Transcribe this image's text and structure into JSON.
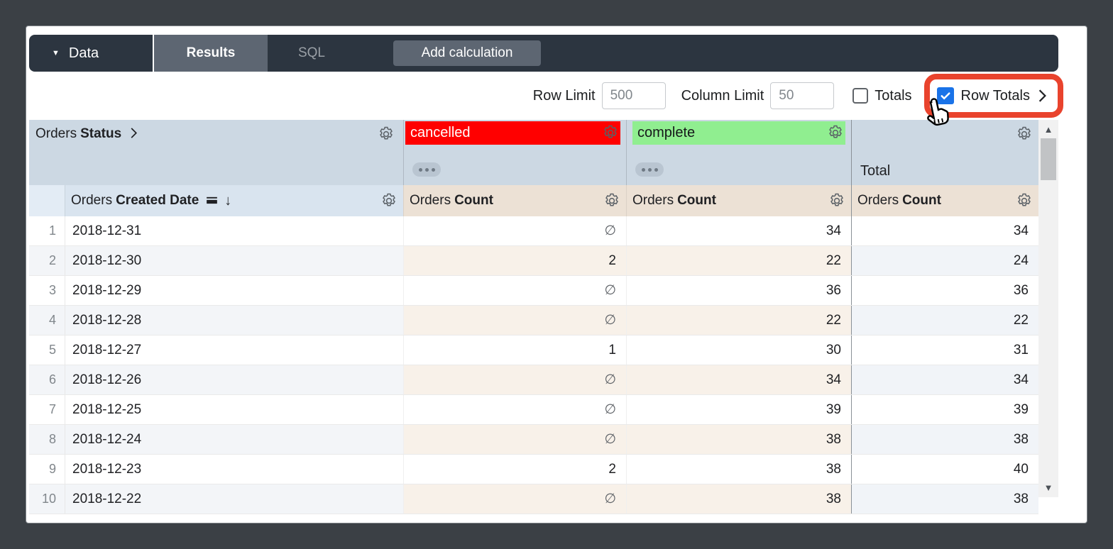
{
  "nav": {
    "data_label": "Data",
    "results_label": "Results",
    "sql_label": "SQL",
    "add_calculation_label": "Add calculation"
  },
  "controls": {
    "row_limit_label": "Row Limit",
    "row_limit_value": "500",
    "column_limit_label": "Column Limit",
    "column_limit_value": "50",
    "totals_label": "Totals",
    "totals_checked": false,
    "row_totals_label": "Row Totals",
    "row_totals_checked": true
  },
  "table": {
    "pivot_field_prefix": "Orders",
    "pivot_field_name": "Status",
    "pivot_values": [
      {
        "label": "cancelled"
      },
      {
        "label": "complete"
      }
    ],
    "total_label": "Total",
    "dimension_prefix": "Orders",
    "dimension_name": "Created Date",
    "measure_prefix": "Orders",
    "measure_name": "Count",
    "null_symbol": "∅",
    "rows": [
      {
        "n": "1",
        "date": "2018-12-31",
        "cancelled": null,
        "complete": 34,
        "total": 34
      },
      {
        "n": "2",
        "date": "2018-12-30",
        "cancelled": 2,
        "complete": 22,
        "total": 24
      },
      {
        "n": "3",
        "date": "2018-12-29",
        "cancelled": null,
        "complete": 36,
        "total": 36
      },
      {
        "n": "4",
        "date": "2018-12-28",
        "cancelled": null,
        "complete": 22,
        "total": 22
      },
      {
        "n": "5",
        "date": "2018-12-27",
        "cancelled": 1,
        "complete": 30,
        "total": 31
      },
      {
        "n": "6",
        "date": "2018-12-26",
        "cancelled": null,
        "complete": 34,
        "total": 34
      },
      {
        "n": "7",
        "date": "2018-12-25",
        "cancelled": null,
        "complete": 39,
        "total": 39
      },
      {
        "n": "8",
        "date": "2018-12-24",
        "cancelled": null,
        "complete": 38,
        "total": 38
      },
      {
        "n": "9",
        "date": "2018-12-23",
        "cancelled": 2,
        "complete": 38,
        "total": 40
      },
      {
        "n": "10",
        "date": "2018-12-22",
        "cancelled": null,
        "complete": 38,
        "total": 38
      }
    ]
  },
  "icons": {
    "dropdown": "▼",
    "sort_desc": "↓",
    "scroll_up": "▲",
    "scroll_down": "▼"
  },
  "colors": {
    "cancelled_bg": "#ff0000",
    "complete_bg": "#90ee90",
    "checkbox_blue": "#1a73e8",
    "highlight_red": "#e9432d"
  }
}
